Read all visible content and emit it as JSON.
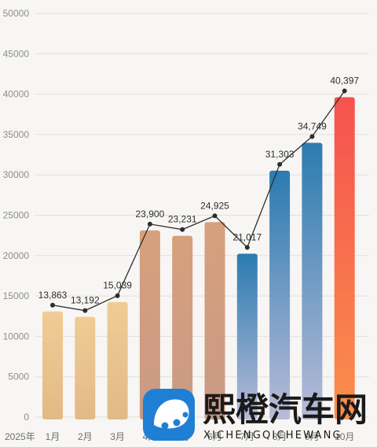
{
  "chart_data": {
    "type": "bar",
    "title": "",
    "xlabel": "",
    "ylabel": "",
    "year_label": "2025年",
    "categories": [
      "1月",
      "2月",
      "3月",
      "4月",
      "5月",
      "6月",
      "7月",
      "8月",
      "9月",
      "10月"
    ],
    "values": [
      13863,
      13192,
      15039,
      23900,
      23231,
      24925,
      21017,
      31303,
      34749,
      40397
    ],
    "value_labels": [
      "13,863",
      "13,192",
      "15,039",
      "23,900",
      "23,231",
      "24,925",
      "21,017",
      "31,303",
      "34,749",
      "40,397"
    ],
    "overlay": "line",
    "ylim": [
      0,
      50000
    ],
    "yticks": [
      "0",
      "5000",
      "10000",
      "15000",
      "20000",
      "25000",
      "30000",
      "35000",
      "40000",
      "45000",
      "50000"
    ],
    "grid": true,
    "legend": "none",
    "bar_colors": [
      [
        "#f0cc94",
        "#e2b986"
      ],
      [
        "#f0cc94",
        "#e2b986"
      ],
      [
        "#f0cc94",
        "#e2b986"
      ],
      [
        "#d6a07c",
        "#c99a85"
      ],
      [
        "#d6a07c",
        "#c99a85"
      ],
      [
        "#d6a07c",
        "#c99a85"
      ],
      [
        "#2b7bb0",
        "#b9bcd8"
      ],
      [
        "#2b7bb0",
        "#b9bcd8"
      ],
      [
        "#2b7bb0",
        "#b9bcd8"
      ],
      [
        "#f5524f",
        "#fb8f4c"
      ]
    ],
    "line_color": "#2d2d2d",
    "grid_color": "#e2e0dc"
  },
  "watermark": {
    "brand_name": "熙橙汽车网",
    "brand_pinyin": "XICHENGQICHEWANG",
    "logo_color": "#1f7fd4"
  }
}
